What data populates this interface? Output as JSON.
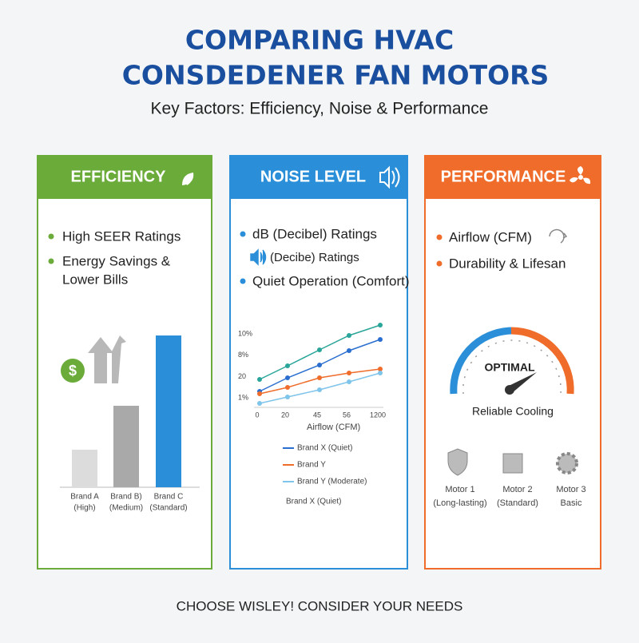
{
  "header": {
    "title_lines": [
      "COMPARING HVAC",
      "CONSDEDENER FAN MOTORS"
    ],
    "subtitle": "Key Factors: Efficiency, Noise & Performance"
  },
  "cards": [
    {
      "title": "EFFICIENCY",
      "bullets": [
        "High SEER Ratings",
        "Energy Savings &",
        "Lower Bills"
      ],
      "chart": {
        "type": "bar",
        "ylim": [
          0,
          100
        ],
        "categories": [
          [
            "Brand A",
            "(High)"
          ],
          [
            "Brand B)",
            "(Medium)"
          ],
          [
            "Brand C",
            "(Standard)"
          ]
        ],
        "values": [
          23.5,
          51,
          95
        ],
        "colors": [
          "#dcdcdc",
          "#a9a9a9",
          "#2a8fd8"
        ]
      }
    },
    {
      "title": "NOISE LEVEL",
      "bullets": [
        "dB (Decibel) Ratings",
        "(Decibe) Ratings",
        "Quiet Operation (Comfort)"
      ],
      "chart": {
        "type": "line",
        "ylim": [
          0,
          105
        ],
        "y_labels": [
          "10%",
          "8%",
          "20",
          "1%"
        ],
        "x_labels": [
          "0",
          "20",
          "45",
          "56",
          "1200"
        ],
        "x_title": "Airflow (CFM)",
        "series": [
          {
            "color": "#2aa59a",
            "values": [
              35,
              52,
              72,
              90,
              103
            ]
          },
          {
            "name": "Brand X (Quiet)",
            "color": "#2a6fd0",
            "values": [
              20,
              37,
              53,
              71,
              85
            ]
          },
          {
            "name": "Brand Y",
            "color": "#ef6c2a",
            "values": [
              17,
              25,
              37,
              43,
              48
            ]
          },
          {
            "name": "Brand Y (Moderate)",
            "color": "#7fc4ea",
            "values": [
              5,
              13,
              22,
              32,
              43
            ]
          }
        ],
        "note": "Brand X (Quiet)"
      }
    },
    {
      "title": "PERFORMANCE",
      "bullets": [
        "Airflow (CFM)",
        "Durability & Lifesan"
      ],
      "gauge": {
        "label": "OPTIMAL",
        "caption": "Reliable Cooling"
      },
      "motors": [
        [
          "Motor 1",
          "(Long-lasting)"
        ],
        [
          "Motor 2",
          "(Standard)"
        ],
        [
          "Motor 3",
          "Basic"
        ]
      ]
    }
  ],
  "footer": "CHOOSE WISLEY! CONSIDER YOUR NEEDS"
}
